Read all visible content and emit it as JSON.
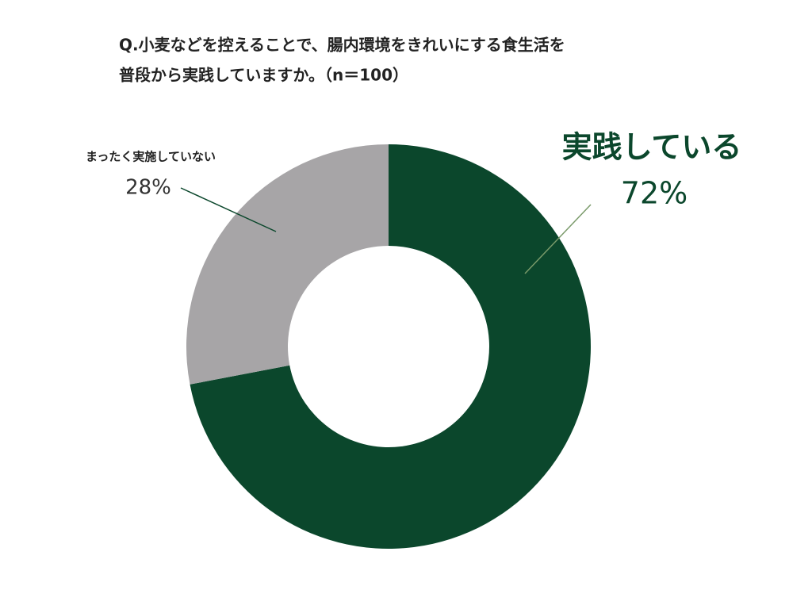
{
  "chart_data": {
    "type": "donut",
    "title": [
      "Q.小麦などを控えることで、腸内環境をきれいにする食生活を",
      "普段から実践していますか。（n＝100）"
    ],
    "categories": [
      "実践している",
      "まったく実施していない"
    ],
    "values": [
      72,
      28
    ],
    "value_labels": [
      "72%",
      "28%"
    ],
    "colors": [
      "#0b472c",
      "#a7a5a7"
    ]
  }
}
